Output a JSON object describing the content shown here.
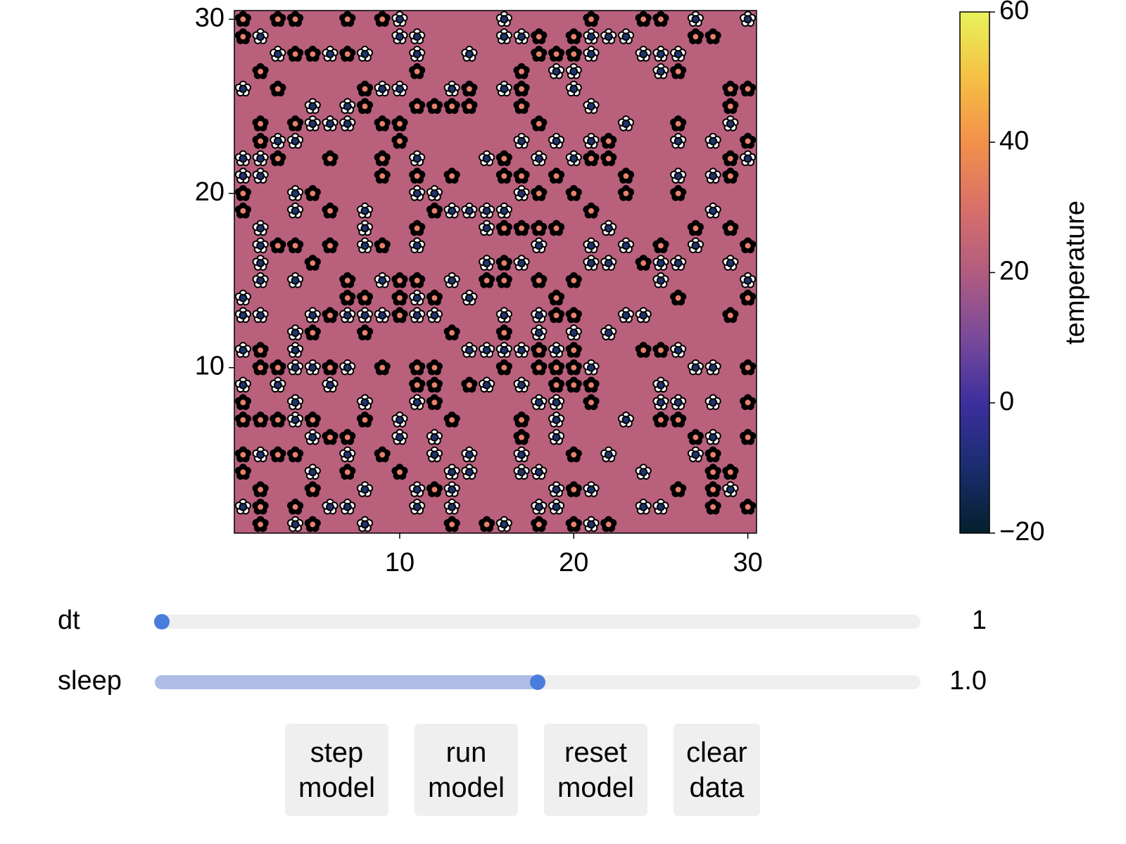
{
  "plot": {
    "xlim": [
      0.5,
      30.5
    ],
    "ylim": [
      0.5,
      30.5
    ],
    "xticks": [
      10,
      20,
      30
    ],
    "yticks": [
      10,
      20,
      30
    ],
    "temperature": 22,
    "white_daisy_color": "#ffffff",
    "black_daisy_color": "#000000",
    "white_center_color": "#1f3570",
    "black_center_color": "#e8806a",
    "white_daisies": [
      [
        10,
        30
      ],
      [
        16,
        30
      ],
      [
        27,
        30
      ],
      [
        30,
        30
      ],
      [
        2,
        29
      ],
      [
        10,
        29
      ],
      [
        11,
        29
      ],
      [
        16,
        29
      ],
      [
        17,
        29
      ],
      [
        21,
        29
      ],
      [
        22,
        29
      ],
      [
        23,
        29
      ],
      [
        3,
        28
      ],
      [
        6,
        28
      ],
      [
        8,
        28
      ],
      [
        11,
        28
      ],
      [
        14,
        28
      ],
      [
        21,
        28
      ],
      [
        24,
        28
      ],
      [
        25,
        28
      ],
      [
        26,
        28
      ],
      [
        19,
        27
      ],
      [
        20,
        27
      ],
      [
        25,
        27
      ],
      [
        1,
        26
      ],
      [
        9,
        26
      ],
      [
        10,
        26
      ],
      [
        13,
        26
      ],
      [
        16,
        26
      ],
      [
        20,
        26
      ],
      [
        5,
        25
      ],
      [
        7,
        25
      ],
      [
        21,
        25
      ],
      [
        5,
        24
      ],
      [
        6,
        24
      ],
      [
        7,
        24
      ],
      [
        23,
        24
      ],
      [
        29,
        24
      ],
      [
        3,
        23
      ],
      [
        4,
        23
      ],
      [
        17,
        23
      ],
      [
        19,
        23
      ],
      [
        21,
        23
      ],
      [
        26,
        23
      ],
      [
        28,
        23
      ],
      [
        1,
        22
      ],
      [
        2,
        22
      ],
      [
        11,
        22
      ],
      [
        15,
        22
      ],
      [
        18,
        22
      ],
      [
        20,
        22
      ],
      [
        30,
        22
      ],
      [
        1,
        21
      ],
      [
        2,
        21
      ],
      [
        26,
        21
      ],
      [
        28,
        21
      ],
      [
        4,
        20
      ],
      [
        11,
        20
      ],
      [
        12,
        20
      ],
      [
        17,
        20
      ],
      [
        4,
        19
      ],
      [
        8,
        19
      ],
      [
        13,
        19
      ],
      [
        14,
        19
      ],
      [
        15,
        19
      ],
      [
        16,
        19
      ],
      [
        28,
        19
      ],
      [
        2,
        18
      ],
      [
        8,
        18
      ],
      [
        15,
        18
      ],
      [
        22,
        18
      ],
      [
        2,
        17
      ],
      [
        8,
        17
      ],
      [
        11,
        17
      ],
      [
        18,
        17
      ],
      [
        21,
        17
      ],
      [
        23,
        17
      ],
      [
        27,
        17
      ],
      [
        2,
        16
      ],
      [
        15,
        16
      ],
      [
        17,
        16
      ],
      [
        21,
        16
      ],
      [
        22,
        16
      ],
      [
        25,
        16
      ],
      [
        26,
        16
      ],
      [
        29,
        16
      ],
      [
        2,
        15
      ],
      [
        4,
        15
      ],
      [
        9,
        15
      ],
      [
        13,
        15
      ],
      [
        25,
        15
      ],
      [
        30,
        15
      ],
      [
        1,
        14
      ],
      [
        11,
        14
      ],
      [
        14,
        14
      ],
      [
        1,
        13
      ],
      [
        2,
        13
      ],
      [
        5,
        13
      ],
      [
        7,
        13
      ],
      [
        8,
        13
      ],
      [
        9,
        13
      ],
      [
        11,
        13
      ],
      [
        12,
        13
      ],
      [
        16,
        13
      ],
      [
        18,
        13
      ],
      [
        23,
        13
      ],
      [
        24,
        13
      ],
      [
        4,
        12
      ],
      [
        18,
        12
      ],
      [
        20,
        12
      ],
      [
        22,
        12
      ],
      [
        1,
        11
      ],
      [
        4,
        11
      ],
      [
        14,
        11
      ],
      [
        15,
        11
      ],
      [
        16,
        11
      ],
      [
        17,
        11
      ],
      [
        19,
        11
      ],
      [
        26,
        11
      ],
      [
        4,
        10
      ],
      [
        5,
        10
      ],
      [
        7,
        10
      ],
      [
        21,
        10
      ],
      [
        27,
        10
      ],
      [
        28,
        10
      ],
      [
        1,
        9
      ],
      [
        3,
        9
      ],
      [
        6,
        9
      ],
      [
        15,
        9
      ],
      [
        17,
        9
      ],
      [
        25,
        9
      ],
      [
        4,
        8
      ],
      [
        8,
        8
      ],
      [
        11,
        8
      ],
      [
        18,
        8
      ],
      [
        19,
        8
      ],
      [
        25,
        8
      ],
      [
        26,
        8
      ],
      [
        28,
        8
      ],
      [
        4,
        7
      ],
      [
        10,
        7
      ],
      [
        19,
        7
      ],
      [
        23,
        7
      ],
      [
        5,
        6
      ],
      [
        10,
        6
      ],
      [
        12,
        6
      ],
      [
        19,
        6
      ],
      [
        28,
        6
      ],
      [
        2,
        5
      ],
      [
        7,
        5
      ],
      [
        12,
        5
      ],
      [
        14,
        5
      ],
      [
        17,
        5
      ],
      [
        22,
        5
      ],
      [
        27,
        5
      ],
      [
        5,
        4
      ],
      [
        13,
        4
      ],
      [
        14,
        4
      ],
      [
        17,
        4
      ],
      [
        18,
        4
      ],
      [
        24,
        4
      ],
      [
        8,
        3
      ],
      [
        11,
        3
      ],
      [
        13,
        3
      ],
      [
        19,
        3
      ],
      [
        21,
        3
      ],
      [
        29,
        3
      ],
      [
        1,
        2
      ],
      [
        6,
        2
      ],
      [
        7,
        2
      ],
      [
        11,
        2
      ],
      [
        13,
        2
      ],
      [
        18,
        2
      ],
      [
        19,
        2
      ],
      [
        24,
        2
      ],
      [
        25,
        2
      ],
      [
        4,
        1
      ],
      [
        8,
        1
      ],
      [
        16,
        1
      ],
      [
        21,
        1
      ]
    ],
    "black_daisies": [
      [
        1,
        30
      ],
      [
        3,
        30
      ],
      [
        4,
        30
      ],
      [
        7,
        30
      ],
      [
        9,
        30
      ],
      [
        21,
        30
      ],
      [
        24,
        30
      ],
      [
        25,
        30
      ],
      [
        1,
        29
      ],
      [
        18,
        29
      ],
      [
        20,
        29
      ],
      [
        27,
        29
      ],
      [
        28,
        29
      ],
      [
        4,
        28
      ],
      [
        5,
        28
      ],
      [
        7,
        28
      ],
      [
        18,
        28
      ],
      [
        19,
        28
      ],
      [
        20,
        28
      ],
      [
        2,
        27
      ],
      [
        11,
        27
      ],
      [
        17,
        27
      ],
      [
        26,
        27
      ],
      [
        3,
        26
      ],
      [
        8,
        26
      ],
      [
        14,
        26
      ],
      [
        17,
        26
      ],
      [
        29,
        26
      ],
      [
        30,
        26
      ],
      [
        8,
        25
      ],
      [
        11,
        25
      ],
      [
        12,
        25
      ],
      [
        13,
        25
      ],
      [
        14,
        25
      ],
      [
        17,
        25
      ],
      [
        29,
        25
      ],
      [
        2,
        24
      ],
      [
        4,
        24
      ],
      [
        9,
        24
      ],
      [
        10,
        24
      ],
      [
        18,
        24
      ],
      [
        26,
        24
      ],
      [
        2,
        23
      ],
      [
        10,
        23
      ],
      [
        22,
        23
      ],
      [
        30,
        23
      ],
      [
        3,
        22
      ],
      [
        6,
        22
      ],
      [
        9,
        22
      ],
      [
        16,
        22
      ],
      [
        21,
        22
      ],
      [
        22,
        22
      ],
      [
        29,
        22
      ],
      [
        9,
        21
      ],
      [
        11,
        21
      ],
      [
        13,
        21
      ],
      [
        16,
        21
      ],
      [
        17,
        21
      ],
      [
        19,
        21
      ],
      [
        23,
        21
      ],
      [
        29,
        21
      ],
      [
        1,
        20
      ],
      [
        5,
        20
      ],
      [
        18,
        20
      ],
      [
        20,
        20
      ],
      [
        23,
        20
      ],
      [
        26,
        20
      ],
      [
        1,
        19
      ],
      [
        6,
        19
      ],
      [
        12,
        19
      ],
      [
        21,
        19
      ],
      [
        11,
        18
      ],
      [
        16,
        18
      ],
      [
        17,
        18
      ],
      [
        18,
        18
      ],
      [
        19,
        18
      ],
      [
        27,
        18
      ],
      [
        29,
        18
      ],
      [
        3,
        17
      ],
      [
        4,
        17
      ],
      [
        6,
        17
      ],
      [
        9,
        17
      ],
      [
        25,
        17
      ],
      [
        30,
        17
      ],
      [
        5,
        16
      ],
      [
        16,
        16
      ],
      [
        24,
        16
      ],
      [
        7,
        15
      ],
      [
        10,
        15
      ],
      [
        11,
        15
      ],
      [
        15,
        15
      ],
      [
        16,
        15
      ],
      [
        18,
        15
      ],
      [
        20,
        15
      ],
      [
        7,
        14
      ],
      [
        8,
        14
      ],
      [
        10,
        14
      ],
      [
        12,
        14
      ],
      [
        19,
        14
      ],
      [
        26,
        14
      ],
      [
        30,
        14
      ],
      [
        6,
        13
      ],
      [
        10,
        13
      ],
      [
        19,
        13
      ],
      [
        20,
        13
      ],
      [
        29,
        13
      ],
      [
        5,
        12
      ],
      [
        8,
        12
      ],
      [
        13,
        12
      ],
      [
        16,
        12
      ],
      [
        2,
        11
      ],
      [
        18,
        11
      ],
      [
        20,
        11
      ],
      [
        24,
        11
      ],
      [
        25,
        11
      ],
      [
        2,
        10
      ],
      [
        3,
        10
      ],
      [
        6,
        10
      ],
      [
        9,
        10
      ],
      [
        11,
        10
      ],
      [
        12,
        10
      ],
      [
        16,
        10
      ],
      [
        18,
        10
      ],
      [
        19,
        10
      ],
      [
        20,
        10
      ],
      [
        30,
        10
      ],
      [
        11,
        9
      ],
      [
        12,
        9
      ],
      [
        14,
        9
      ],
      [
        19,
        9
      ],
      [
        20,
        9
      ],
      [
        21,
        9
      ],
      [
        1,
        8
      ],
      [
        12,
        8
      ],
      [
        21,
        8
      ],
      [
        30,
        8
      ],
      [
        1,
        7
      ],
      [
        2,
        7
      ],
      [
        3,
        7
      ],
      [
        5,
        7
      ],
      [
        8,
        7
      ],
      [
        13,
        7
      ],
      [
        17,
        7
      ],
      [
        25,
        7
      ],
      [
        26,
        7
      ],
      [
        6,
        6
      ],
      [
        7,
        6
      ],
      [
        17,
        6
      ],
      [
        27,
        6
      ],
      [
        30,
        6
      ],
      [
        1,
        5
      ],
      [
        3,
        5
      ],
      [
        4,
        5
      ],
      [
        9,
        5
      ],
      [
        20,
        5
      ],
      [
        28,
        5
      ],
      [
        1,
        4
      ],
      [
        7,
        4
      ],
      [
        10,
        4
      ],
      [
        28,
        4
      ],
      [
        29,
        4
      ],
      [
        2,
        3
      ],
      [
        5,
        3
      ],
      [
        12,
        3
      ],
      [
        20,
        3
      ],
      [
        26,
        3
      ],
      [
        28,
        3
      ],
      [
        2,
        2
      ],
      [
        4,
        2
      ],
      [
        28,
        2
      ],
      [
        30,
        2
      ],
      [
        2,
        1
      ],
      [
        5,
        1
      ],
      [
        13,
        1
      ],
      [
        15,
        1
      ],
      [
        18,
        1
      ],
      [
        20,
        1
      ],
      [
        22,
        1
      ]
    ]
  },
  "colorbar": {
    "label": "temperature",
    "lim": [
      -20,
      60
    ],
    "ticks": [
      {
        "value": -20,
        "label": "−20"
      },
      0,
      20,
      40,
      60
    ],
    "colors": [
      "#03202c",
      "#1a2d6e",
      "#3c2f9e",
      "#7a4a9a",
      "#b15c80",
      "#d9706a",
      "#f3904a",
      "#f5c044",
      "#e8f35a"
    ]
  },
  "controls": {
    "sliders": [
      {
        "label": "dt",
        "value": 1,
        "range": [
          1,
          100
        ]
      },
      {
        "label": "sleep",
        "value": 1.0,
        "value_label": "1.0",
        "range": [
          0,
          2
        ]
      }
    ],
    "buttons": [
      "step\nmodel",
      "run\nmodel",
      "reset\nmodel",
      "clear\ndata"
    ]
  }
}
